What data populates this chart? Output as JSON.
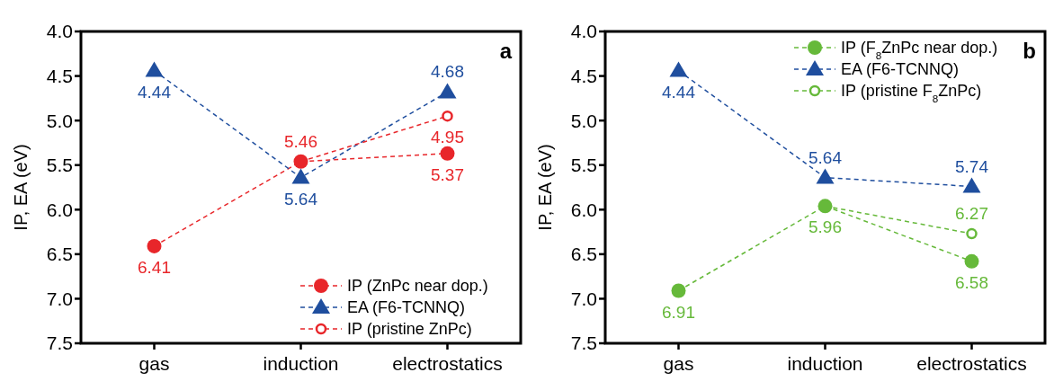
{
  "chart_data": [
    {
      "type": "line",
      "title": "a",
      "ylabel": "IP, EA (eV)",
      "categories": [
        "gas",
        "induction",
        "electrostatics"
      ],
      "ylim": [
        7.5,
        4.0
      ],
      "yticks": [
        {
          "value": 4.0,
          "label": "4.0"
        },
        4.5,
        {
          "value": 5.0,
          "label": "5.0"
        },
        5.5,
        {
          "value": 6.0,
          "label": "6.0"
        },
        6.5,
        {
          "value": 7.0,
          "label": "7.0"
        },
        7.5
      ],
      "line_style": "dashed",
      "legend": "bottom right",
      "grid": false,
      "series": [
        {
          "name": "IP (ZnPc near dop.)",
          "color": "#e8262a",
          "marker": "circle",
          "values": [
            6.41,
            5.46,
            5.37
          ],
          "value_labels": [
            "6.41",
            "5.46",
            "5.37"
          ]
        },
        {
          "name": "EA (F6-TCNNQ)",
          "color": "#1f4e9e",
          "marker": "triangle",
          "values": [
            4.44,
            5.64,
            4.68
          ],
          "value_labels": [
            "4.44",
            "5.64",
            "4.68"
          ]
        },
        {
          "name": "IP (pristine ZnPc)",
          "color": "#e8262a",
          "marker": "circle_open",
          "values": [
            null,
            5.46,
            4.95
          ],
          "value_labels": [
            null,
            null,
            "4.95"
          ]
        }
      ]
    },
    {
      "type": "line",
      "title": "b",
      "ylabel": "IP, EA (eV)",
      "categories": [
        "gas",
        "induction",
        "electrostatics"
      ],
      "ylim": [
        7.5,
        4.0
      ],
      "yticks": [
        {
          "value": 4.0,
          "label": "4.0"
        },
        4.5,
        {
          "value": 5.0,
          "label": "5.0"
        },
        5.5,
        {
          "value": 6.0,
          "label": "6.0"
        },
        6.5,
        {
          "value": 7.0,
          "label": "7.0"
        },
        7.5
      ],
      "line_style": "dashed",
      "legend": "top right",
      "grid": false,
      "series": [
        {
          "name": "IP (F$_{8}$ZnPc near dop.)",
          "color": "#66b93a",
          "marker": "circle",
          "values": [
            6.91,
            5.96,
            6.58
          ],
          "value_labels": [
            "6.91",
            "5.96",
            "6.58"
          ]
        },
        {
          "name": "EA (F6-TCNNQ)",
          "color": "#1f4e9e",
          "marker": "triangle",
          "values": [
            4.44,
            5.64,
            5.74
          ],
          "value_labels": [
            "4.44",
            "5.64",
            "5.74"
          ]
        },
        {
          "name": "IP (pristine F$_{8}$ZnPc)",
          "color": "#66b93a",
          "marker": "circle_open",
          "values": [
            null,
            5.96,
            6.27
          ],
          "value_labels": [
            null,
            null,
            "6.27"
          ]
        }
      ]
    }
  ]
}
